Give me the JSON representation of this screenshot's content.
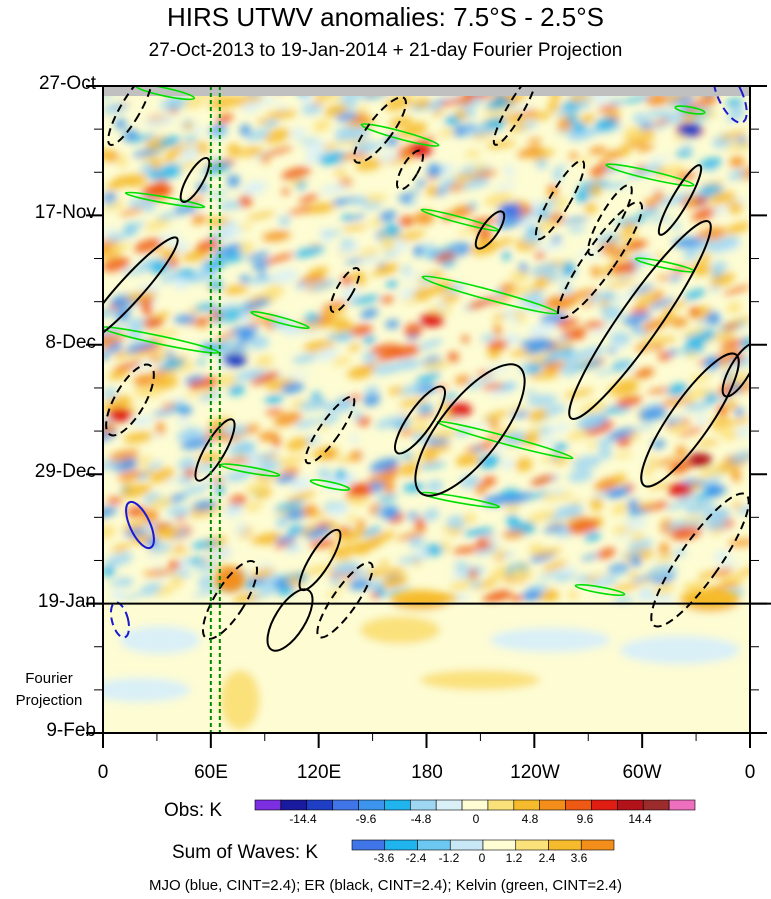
{
  "chart_data": {
    "type": "heatmap",
    "title": "HIRS UTWV anomalies: 7.5°S - 2.5°S",
    "subtitle": "27-Oct-2013 to 19-Jan-2014 + 21-day Fourier Projection",
    "x_ticks": [
      "0",
      "60E",
      "120E",
      "180",
      "120W",
      "60W",
      "0"
    ],
    "x_values": [
      0,
      60,
      120,
      180,
      240,
      300,
      360
    ],
    "y_ticks": [
      "27-Oct",
      "17-Nov",
      "8-Dec",
      "29-Dec",
      "19-Jan",
      "9-Feb"
    ],
    "y_values_days": [
      0,
      21,
      42,
      63,
      84,
      105
    ],
    "projection_label": "Fourier Projection",
    "projection_start": "19-Jan",
    "reference_longitudes": [
      60,
      65
    ],
    "obs_colorbar": {
      "label": "Obs: K",
      "tick_labels": [
        "-14.4",
        "-9.6",
        "-4.8",
        "0",
        "4.8",
        "9.6",
        "14.4"
      ],
      "colors": [
        "#7b2fe0",
        "#1a1a9e",
        "#1e3fc4",
        "#3f75e6",
        "#3c94ec",
        "#1fb4ee",
        "#9fd6f2",
        "#d9f0f7",
        "#fdfcd3",
        "#fbe17a",
        "#f6bb2c",
        "#f38e1b",
        "#ee5a13",
        "#e01d12",
        "#b2121a",
        "#9c2b2b",
        "#ef6fbf"
      ]
    },
    "waves_colorbar": {
      "label": "Sum of Waves: K",
      "tick_labels": [
        "-3.6",
        "-2.4",
        "-1.2",
        "0",
        "1.2",
        "2.4",
        "3.6"
      ],
      "colors": [
        "#3f75e6",
        "#1fb4ee",
        "#6cc8f0",
        "#c8e8f6",
        "#fdfcd3",
        "#fbe17a",
        "#f6bb2c",
        "#f38e1b"
      ]
    },
    "legend": "MJO (blue, CINT=2.4); ER (black, CINT=2.4); Kelvin (green, CINT=2.4)"
  }
}
